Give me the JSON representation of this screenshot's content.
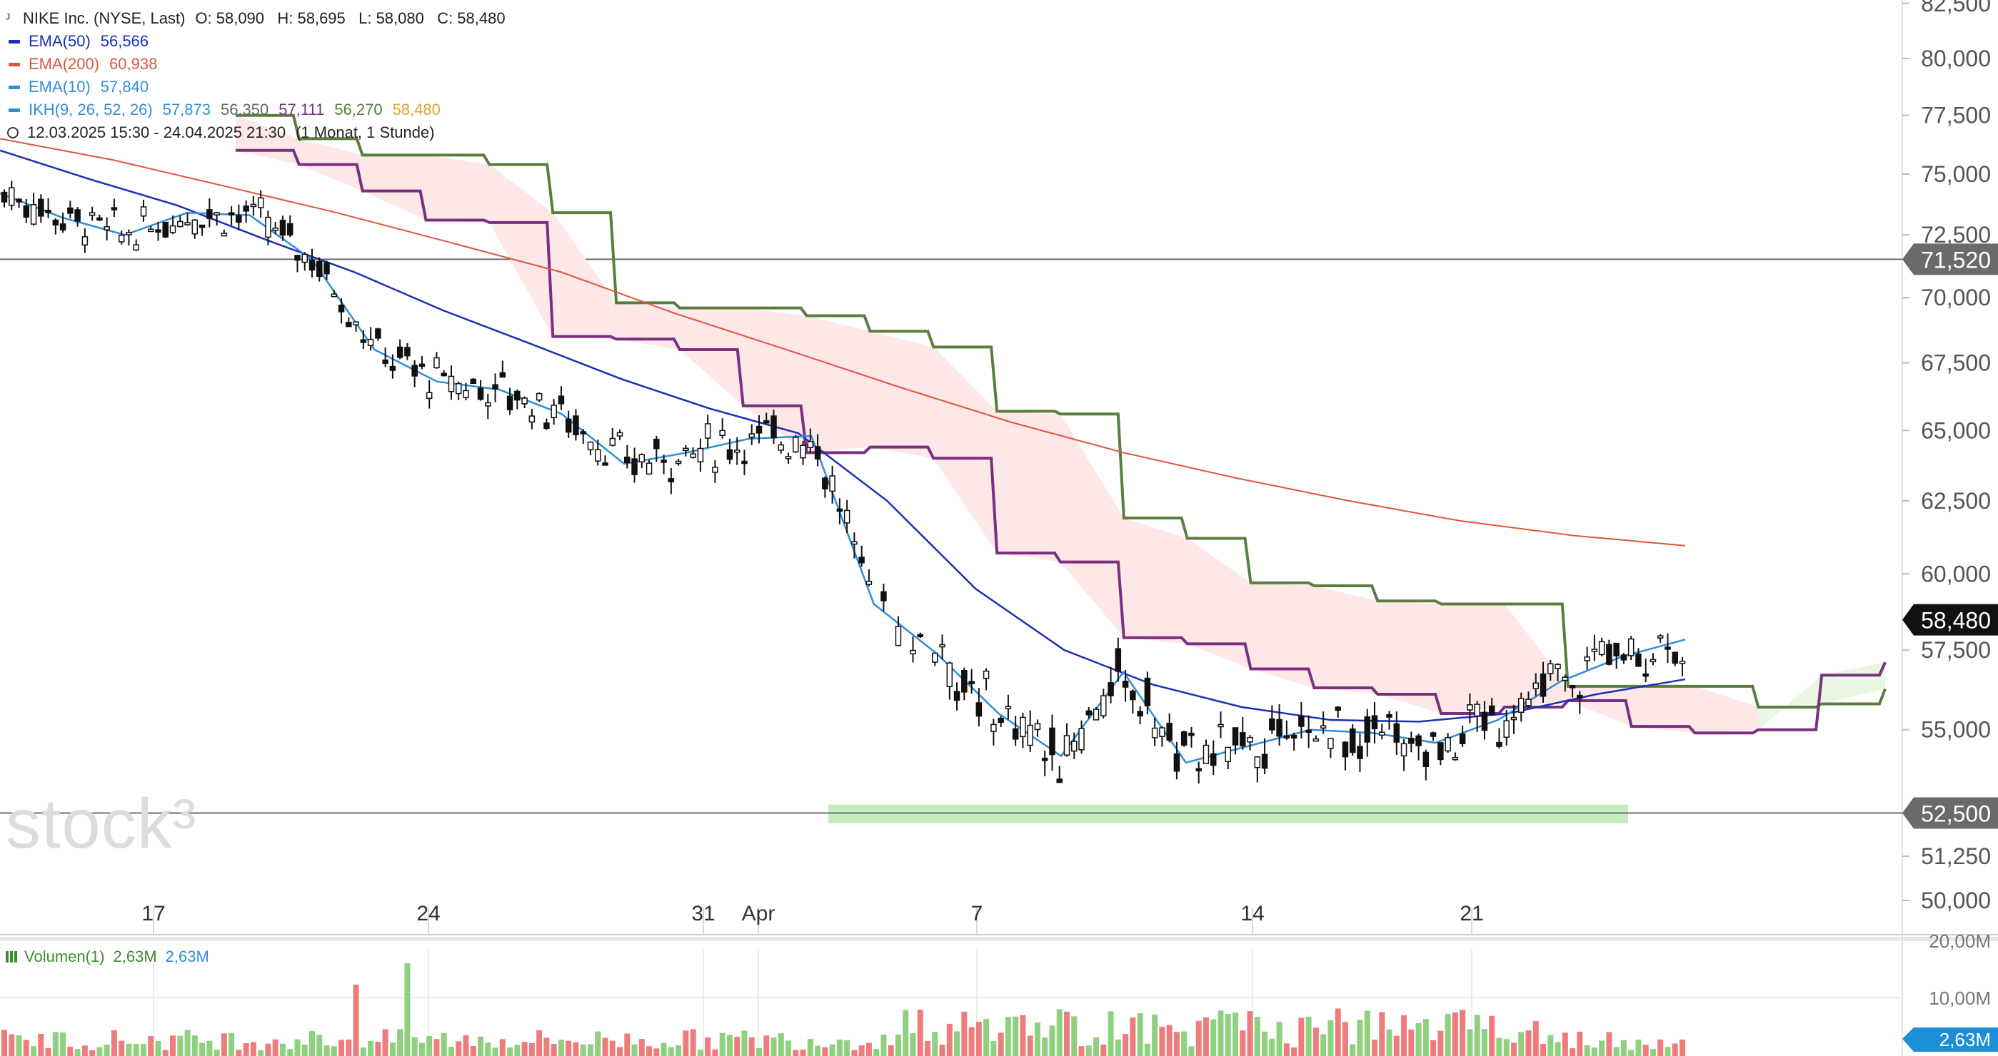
{
  "header": {
    "symbol_line": "NIKE Inc. (NYSE, Last)",
    "ohlc": "O: 58,090   H: 58,695   L: 58,080   C: 58,480",
    "ema50_label": "EMA(50)",
    "ema50_value": "56,566",
    "ema200_label": "EMA(200)",
    "ema200_value": "60,938",
    "ema10_label": "EMA(10)",
    "ema10_value": "57,840",
    "ikh_label": "IKH(9, 26, 52, 26)",
    "ikh_values": [
      "57,873",
      "56,350",
      "57,111",
      "56,270",
      "58,480"
    ],
    "range": "12.03.2025 15:30 - 24.04.2025 21:30",
    "interval": "(1 Monat, 1 Stunde)"
  },
  "volume_legend": {
    "label": "Volumen(1)",
    "value1": "2,63M",
    "value2": "2,63M"
  },
  "watermark": "stock³",
  "colors": {
    "ema50": "#1a2fb5",
    "ema200": "#e2553f",
    "ema10": "#2e8fd6",
    "ikh_senkou_a": "#5b7d3e",
    "ikh_senkou_b": "#7a2f80",
    "cloud_bear": "#fde7e7",
    "cloud_bull": "#e9f6e2",
    "support_zone": "#c4ecc0",
    "vol_up": "#8fd07f",
    "vol_down": "#ef7c7c",
    "ikh_val1": "#2e8fd6",
    "ikh_val2": "#666666",
    "ikh_val3": "#7a2f80",
    "ikh_val4": "#5b7d3e",
    "ikh_val5": "#e2a32e"
  },
  "chart_data": {
    "type": "candlestick",
    "title": "NIKE Inc. (NYSE, Last)",
    "y_axis": {
      "ticks": [
        "82,500",
        "80,000",
        "77,500",
        "75,000",
        "72,500",
        "70,000",
        "67,500",
        "65,000",
        "62,500",
        "60,000",
        "57,500",
        "55,000",
        "52,500",
        "51,250",
        "50,000"
      ],
      "tick_values": [
        82.5,
        80,
        77.5,
        75,
        72.5,
        70,
        67.5,
        65,
        62.5,
        60,
        57.5,
        55,
        52.5,
        51.25,
        50
      ],
      "scale": "log"
    },
    "x_axis": {
      "ticks": [
        "17",
        "24",
        "31",
        "Apr",
        "7",
        "14",
        "21"
      ]
    },
    "horizontal_lines": [
      {
        "label": "71,520",
        "value": 71.52
      },
      {
        "label": "52,500",
        "value": 52.5
      }
    ],
    "last_price": {
      "label": "58,480",
      "value": 58.48
    },
    "support_zone": {
      "from": "Apr 3",
      "to": "Apr 24",
      "low": 52.2,
      "high": 52.75
    },
    "ema200": [
      76.5,
      75.6,
      74.5,
      73.4,
      72.2,
      71.0,
      69.4,
      68.0,
      66.6,
      65.3,
      64.2,
      63.3,
      62.5,
      61.8,
      61.3,
      60.95
    ],
    "ema50": [
      76.0,
      74.8,
      73.7,
      72.3,
      71.0,
      69.5,
      68.2,
      66.9,
      65.8,
      64.9,
      62.5,
      59.5,
      57.5,
      56.4,
      55.7,
      55.3,
      55.25,
      55.5,
      56.1,
      56.57
    ],
    "ema10": [
      74.2,
      73.2,
      72.5,
      73.4,
      73.3,
      71.5,
      68.0,
      66.8,
      66.5,
      65.6,
      63.8,
      64.2,
      64.7,
      64.8,
      59.0,
      57.4,
      55.5,
      54.2,
      56.8,
      54.0,
      54.5,
      55.0,
      54.9,
      54.6,
      55.3,
      56.5,
      57.3,
      57.84
    ],
    "senkou_a": [
      77.5,
      76.5,
      75.8,
      75.8,
      75.4,
      73.4,
      69.8,
      69.6,
      69.6,
      69.3,
      68.7,
      68.1,
      65.7,
      65.6,
      61.9,
      61.2,
      59.7,
      59.6,
      59.1,
      59.0,
      59.0,
      56.35,
      56.35,
      56.35,
      55.7,
      55.8,
      56.27
    ],
    "senkou_b": [
      76.0,
      75.4,
      74.3,
      73.1,
      73.0,
      68.5,
      68.4,
      68.0,
      65.9,
      64.2,
      64.4,
      64.0,
      60.7,
      60.4,
      57.9,
      57.7,
      56.9,
      56.3,
      56.1,
      55.5,
      55.7,
      55.9,
      55.1,
      54.9,
      55.0,
      56.7,
      57.11
    ],
    "volume_scale": [
      "20,00M",
      "10,00M"
    ],
    "last_volume": "2,63M"
  }
}
